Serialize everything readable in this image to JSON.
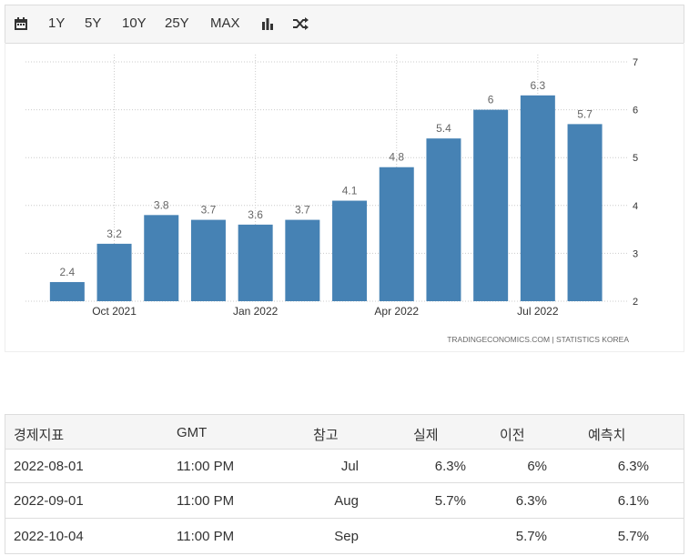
{
  "toolbar": {
    "ranges": [
      "1Y",
      "5Y",
      "10Y",
      "25Y",
      "MAX"
    ]
  },
  "chart_data": {
    "type": "bar",
    "categories": [
      null,
      "Oct 2021",
      null,
      null,
      "Jan 2022",
      null,
      null,
      "Apr 2022",
      null,
      null,
      "Jul 2022",
      null
    ],
    "values": [
      2.4,
      3.2,
      3.8,
      3.7,
      3.6,
      3.7,
      4.1,
      4.8,
      5.4,
      6,
      6.3,
      5.7
    ],
    "color": "#4682b4",
    "ylim": [
      2,
      7
    ],
    "yticks": [
      2,
      3,
      4,
      5,
      6,
      7
    ],
    "grid": true,
    "source": "TRADINGECONOMICS.COM  |  STATISTICS KOREA"
  },
  "table": {
    "header": [
      "경제지표",
      "GMT",
      "참고",
      "실제",
      "이전",
      "예측치"
    ],
    "rows": [
      [
        "2022-08-01",
        "11:00 PM",
        "Jul",
        "6.3%",
        "6%",
        "6.3%"
      ],
      [
        "2022-09-01",
        "11:00 PM",
        "Aug",
        "5.7%",
        "6.3%",
        "6.1%"
      ],
      [
        "2022-10-04",
        "11:00 PM",
        "Sep",
        null,
        "5.7%",
        "5.7%"
      ]
    ]
  }
}
